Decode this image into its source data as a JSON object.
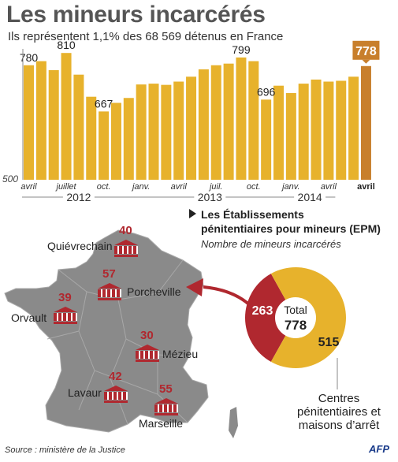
{
  "title": "Les mineurs incarcérés",
  "subtitle": "Ils représentent 1,1% des 68 569 détenus en France",
  "chart_data": {
    "type": "bar",
    "title": "Les mineurs incarcérés",
    "subtitle": "Ils représentent 1,1% des 68 569 détenus en France",
    "y_baseline": 500,
    "ylim": [
      500,
      820
    ],
    "values": [
      780,
      790,
      768,
      810,
      757,
      703,
      667,
      688,
      700,
      733,
      735,
      732,
      740,
      752,
      770,
      780,
      784,
      799,
      790,
      696,
      730,
      712,
      735,
      745,
      740,
      742,
      752,
      778
    ],
    "highlight_index": 27,
    "value_labels": [
      {
        "index": 0,
        "text": "780"
      },
      {
        "index": 3,
        "text": "810"
      },
      {
        "index": 6,
        "text": "667"
      },
      {
        "index": 17,
        "text": "799"
      },
      {
        "index": 19,
        "text": "696"
      },
      {
        "index": 27,
        "text": "778"
      }
    ],
    "month_ticks": [
      {
        "index": 0,
        "text": "avril"
      },
      {
        "index": 3,
        "text": "juillet"
      },
      {
        "index": 6,
        "text": "oct."
      },
      {
        "index": 9,
        "text": "janv."
      },
      {
        "index": 12,
        "text": "avril"
      },
      {
        "index": 15,
        "text": "juil."
      },
      {
        "index": 18,
        "text": "oct."
      },
      {
        "index": 21,
        "text": "janv."
      },
      {
        "index": 24,
        "text": "avril"
      }
    ],
    "years": [
      {
        "label": "2012",
        "from": 0,
        "to": 8
      },
      {
        "label": "2013",
        "from": 9,
        "to": 20
      },
      {
        "label": "2014",
        "from": 21,
        "to": 24
      }
    ],
    "colors": {
      "bar": "#e7b22c",
      "highlight": "#c87f2c",
      "axis": "#888888"
    }
  },
  "epm": {
    "heading_line1": "Les Établissements",
    "heading_line2": "pénitentiaires pour mineurs (EPM)",
    "subheading": "Nombre de mineurs incarcérés",
    "cities": [
      {
        "name": "Quiévrechain",
        "count": "40"
      },
      {
        "name": "Porcheville",
        "count": "57"
      },
      {
        "name": "Orvault",
        "count": "39"
      },
      {
        "name": "Mézieu",
        "count": "30"
      },
      {
        "name": "Lavaur",
        "count": "42"
      },
      {
        "name": "Marseille",
        "count": "55"
      }
    ],
    "colors": {
      "map": "#8a8a8a",
      "marker": "#b0282f"
    }
  },
  "donut": {
    "total_label": "Total",
    "total_value": "778",
    "segments": [
      {
        "label": "263",
        "value": 263,
        "color": "#b0282f"
      },
      {
        "label": "515",
        "value": 515,
        "color": "#e7b22c"
      }
    ],
    "centres_line1": "Centres",
    "centres_line2": "pénitentiaires et",
    "centres_line3": "maisons d’arrêt"
  },
  "source": "Source : ministère de la Justice",
  "agency": "AFP"
}
